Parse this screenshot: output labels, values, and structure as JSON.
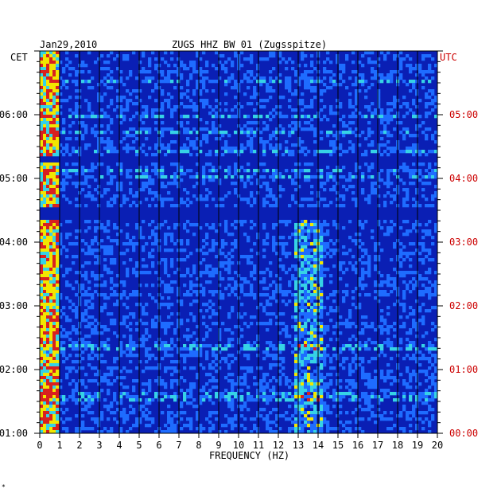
{
  "header": {
    "date": "Jan29,2010",
    "title": "ZUGS HHZ BW 01 (Zugsspitze)",
    "left_zone": "CET",
    "right_zone": "UTC"
  },
  "footer": {
    "mark": "*"
  },
  "chart_data": {
    "type": "heatmap",
    "title": "ZUGS HHZ BW 01 (Zugsspitze)",
    "xlabel": "FREQUENCY (HZ)",
    "x_ticks": [
      "0",
      "1",
      "2",
      "3",
      "4",
      "5",
      "6",
      "7",
      "8",
      "9",
      "10",
      "11",
      "12",
      "13",
      "14",
      "15",
      "16",
      "17",
      "18",
      "19",
      "20"
    ],
    "xlim": [
      0,
      20
    ],
    "y_left_label": "CET",
    "y_left_ticks": [
      "06:00",
      "05:00",
      "04:00",
      "03:00",
      "02:00",
      "01:00"
    ],
    "y_right_label": "UTC",
    "y_right_ticks": [
      "05:00",
      "04:00",
      "03:00",
      "02:00",
      "01:00",
      "00:00"
    ],
    "time_range_utc_hours": [
      0,
      6
    ],
    "colors": {
      "background_low": "#0a1fb4",
      "mid": "#1e6cff",
      "high": "#36d2e6",
      "peak_yellow": "#f2e600",
      "peak_red": "#d82020",
      "left_axis_text": "#000000",
      "right_axis_text": "#cc0000"
    },
    "energy_bands_hz": [
      [
        0,
        1
      ],
      [
        12.8,
        14.2
      ]
    ],
    "quiet_intervals_utc": [
      [
        "03:22",
        "03:34"
      ],
      [
        "04:15",
        "04:22"
      ]
    ]
  }
}
